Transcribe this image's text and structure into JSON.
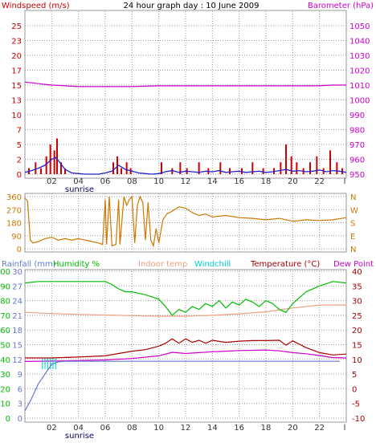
{
  "title": "24 hour graph day : 10 June 2009",
  "colors": {
    "windspeed": "#cc0000",
    "barometer": "#cc00cc",
    "direction": "#cc7700",
    "rainfall": "#6677cc",
    "humidity": "#00bb00",
    "indoor": "#eea080",
    "windchill": "#00cccc",
    "temperature": "#aa0000",
    "dewpoint": "#cc00cc",
    "grid": "#999999",
    "axis_dark": "#333333"
  },
  "x_ticks": [
    "02",
    "04",
    "06",
    "08",
    "10",
    "12",
    "14",
    "16",
    "18",
    "20",
    "22"
  ],
  "x_end_label": "l",
  "sunrise_label": "sunrise",
  "chart_data": [
    {
      "type": "line",
      "title": "24 hour graph day : 10 June 2009",
      "left_axis_label": "Windspeed (m/s)",
      "right_axis_label": "Barometer (hPa)",
      "left_ticks": [
        0,
        2,
        5,
        7,
        10,
        13,
        15,
        17,
        20,
        23,
        25
      ],
      "right_ticks": [
        950,
        960,
        970,
        980,
        990,
        1000,
        1010,
        1020,
        1030,
        1040,
        1050
      ],
      "ylim_left": [
        0,
        25
      ],
      "ylim_right": [
        950,
        1050
      ],
      "xlim": [
        0,
        24
      ],
      "series": [
        {
          "name": "Barometer",
          "axis": "right",
          "x": [
            0,
            0.5,
            1,
            1.5,
            2,
            3,
            4,
            5,
            6,
            8,
            10,
            12,
            14,
            16,
            18,
            20,
            22,
            23,
            24
          ],
          "values": [
            1012,
            1011.5,
            1011,
            1010.5,
            1010,
            1009.5,
            1009,
            1009,
            1009,
            1009,
            1009.5,
            1009.5,
            1009.5,
            1009.5,
            1009.5,
            1009.5,
            1009.5,
            1010,
            1010
          ]
        },
        {
          "name": "Wind gust",
          "axis": "left",
          "x": [
            0.3,
            0.8,
            1.2,
            1.6,
            1.9,
            2.2,
            2.4,
            2.7,
            3.0,
            6.6,
            6.9,
            7.2,
            7.6,
            7.9,
            10.2,
            11.0,
            11.6,
            12.1,
            13.0,
            13.7,
            14.6,
            15.3,
            16.2,
            17.0,
            17.8,
            18.6,
            19.1,
            19.5,
            19.9,
            20.3,
            20.8,
            21.3,
            21.8,
            22.3,
            22.8,
            23.3,
            23.7
          ],
          "values": [
            1,
            2,
            1,
            3,
            5,
            4,
            6,
            2,
            1,
            2,
            3,
            1,
            2,
            1,
            2,
            1,
            2,
            1,
            2,
            1,
            2,
            1,
            1,
            2,
            1,
            1,
            2,
            5,
            3,
            2,
            1,
            2,
            3,
            1,
            4,
            2,
            1
          ]
        },
        {
          "name": "Windspeed",
          "axis": "left",
          "x": [
            0,
            0.5,
            1,
            1.5,
            2,
            2.3,
            2.6,
            3,
            3.5,
            4,
            4.5,
            5,
            5.5,
            6,
            6.5,
            7,
            7.5,
            8,
            8.5,
            9,
            9.5,
            10,
            10.5,
            11,
            11.5,
            12,
            12.5,
            13,
            13.5,
            14,
            14.5,
            15,
            15.5,
            16,
            16.5,
            17,
            17.5,
            18,
            18.5,
            19,
            19.5,
            20,
            20.5,
            21,
            21.5,
            22,
            22.5,
            23,
            23.5,
            24
          ],
          "values": [
            0.3,
            0.6,
            1,
            1.5,
            2.5,
            2.8,
            2,
            0.8,
            0.2,
            0.1,
            0,
            0,
            0,
            0.2,
            0.5,
            1.5,
            0.8,
            0.5,
            0.2,
            0.1,
            0,
            0.1,
            0.4,
            0.6,
            0.3,
            0.5,
            0.4,
            0.3,
            0.5,
            0.4,
            0.6,
            0.3,
            0.4,
            0.5,
            0.3,
            0.4,
            0.5,
            0.3,
            0.4,
            0.6,
            0.8,
            0.5,
            0.6,
            0.4,
            0.5,
            0.7,
            0.4,
            0.6,
            0.5,
            0.3
          ]
        }
      ]
    },
    {
      "type": "line",
      "left_ticks": [
        0,
        90,
        180,
        270,
        360
      ],
      "right_labels": [
        "N",
        "W",
        "S",
        "E",
        "N"
      ],
      "ylim": [
        0,
        360
      ],
      "xlim": [
        0,
        24
      ],
      "series": [
        {
          "name": "Wind direction",
          "x": [
            0,
            0.2,
            0.4,
            0.6,
            1,
            1.5,
            2,
            2.5,
            3,
            3.5,
            4,
            4.5,
            5,
            5.5,
            5.8,
            6.0,
            6.1,
            6.3,
            6.5,
            6.8,
            7.0,
            7.1,
            7.4,
            7.6,
            7.8,
            8.0,
            8.2,
            8.4,
            8.6,
            8.8,
            9.0,
            9.2,
            9.4,
            9.6,
            9.8,
            10.0,
            10.3,
            10.6,
            11.0,
            11.5,
            12,
            12.5,
            13,
            13.5,
            14,
            15,
            16,
            17,
            18,
            19,
            20,
            21,
            22,
            23,
            24
          ],
          "values": [
            350,
            330,
            60,
            40,
            50,
            70,
            80,
            60,
            70,
            60,
            70,
            60,
            50,
            40,
            30,
            340,
            30,
            360,
            20,
            30,
            340,
            30,
            360,
            300,
            340,
            360,
            40,
            300,
            360,
            320,
            60,
            320,
            60,
            20,
            140,
            40,
            200,
            240,
            260,
            290,
            280,
            250,
            230,
            240,
            220,
            230,
            215,
            210,
            200,
            210,
            190,
            200,
            195,
            200,
            215
          ]
        }
      ]
    },
    {
      "type": "line",
      "left_axis_labels": [
        "Rainfall (mm)",
        "Humidity %"
      ],
      "center_labels": [
        "Indoor temp",
        "Windchill"
      ],
      "right_axis_labels": [
        "Temperature (°C)",
        "Dew Point"
      ],
      "rain_ticks": [
        0,
        3,
        6,
        9,
        12,
        15,
        18,
        21,
        24,
        27,
        30
      ],
      "humidity_ticks": [
        0,
        10,
        20,
        30,
        40,
        50,
        60,
        70,
        80,
        90,
        100
      ],
      "temp_ticks": [
        -10,
        -5,
        0,
        5,
        10,
        15,
        20,
        25,
        30,
        35,
        40
      ],
      "ylim_humidity": [
        0,
        100
      ],
      "ylim_temp": [
        -10,
        40
      ],
      "xlim": [
        0,
        24
      ],
      "series": [
        {
          "name": "Rainfall",
          "axis": "rain",
          "x": [
            0,
            0.5,
            1,
            1.5,
            2,
            2.5,
            3,
            6,
            10,
            14,
            18,
            22,
            23.5
          ],
          "values": [
            1.5,
            4,
            7,
            9,
            11,
            11.5,
            11.6,
            11.6,
            11.6,
            11.6,
            11.6,
            11.6,
            11.6
          ]
        },
        {
          "name": "Humidity",
          "axis": "humidity",
          "x": [
            0,
            1,
            2,
            3,
            4,
            5,
            6,
            6.5,
            7,
            7.5,
            8,
            9,
            10,
            10.5,
            11,
            11.5,
            12,
            12.5,
            13,
            13.5,
            14,
            14.5,
            15,
            15.5,
            16,
            16.5,
            17,
            17.5,
            18,
            18.5,
            19,
            19.5,
            20,
            20.5,
            21,
            22,
            23,
            24
          ],
          "values": [
            92,
            93,
            93,
            93,
            93,
            93,
            93,
            91,
            88,
            86,
            86,
            84,
            81,
            76,
            70,
            74,
            72,
            76,
            74,
            78,
            76,
            80,
            75,
            79,
            77,
            81,
            79,
            76,
            80,
            78,
            74,
            72,
            78,
            82,
            86,
            90,
            93,
            92
          ]
        },
        {
          "name": "Indoor temp",
          "axis": "temp",
          "x": [
            0,
            2,
            4,
            6,
            8,
            10,
            12,
            14,
            16,
            18,
            20,
            22,
            24
          ],
          "values": [
            26,
            25.6,
            25.3,
            25.1,
            24.9,
            24.7,
            24.7,
            25,
            25.5,
            26.2,
            27.5,
            28.5,
            28.5
          ]
        },
        {
          "name": "Temperature",
          "axis": "temp",
          "x": [
            0,
            2,
            4,
            6,
            7,
            8,
            9,
            10,
            10.5,
            11,
            11.5,
            12,
            12.5,
            13,
            13.5,
            14,
            15,
            16,
            17,
            18,
            19,
            19.5,
            20,
            21,
            22,
            23,
            24
          ],
          "values": [
            10.5,
            10.5,
            10.8,
            11.2,
            12,
            12.8,
            13.3,
            14.5,
            15.5,
            17,
            15.5,
            17,
            15.8,
            16.5,
            15.5,
            16.5,
            15.8,
            16.2,
            16.4,
            16.4,
            16.5,
            14.8,
            16.3,
            14,
            12.3,
            11.5,
            11.8
          ]
        },
        {
          "name": "Dew Point",
          "axis": "temp",
          "x": [
            0,
            2,
            4,
            6,
            8,
            10,
            11,
            12,
            13,
            14,
            15,
            16,
            17,
            18,
            19,
            20,
            21,
            22,
            23,
            24
          ],
          "values": [
            9.3,
            9.4,
            9.6,
            9.8,
            10.3,
            11.2,
            12.4,
            12,
            12.3,
            12.6,
            12.8,
            13,
            13.1,
            13.2,
            12.9,
            12.3,
            11.9,
            11.3,
            10.6,
            10.5
          ]
        }
      ]
    }
  ]
}
